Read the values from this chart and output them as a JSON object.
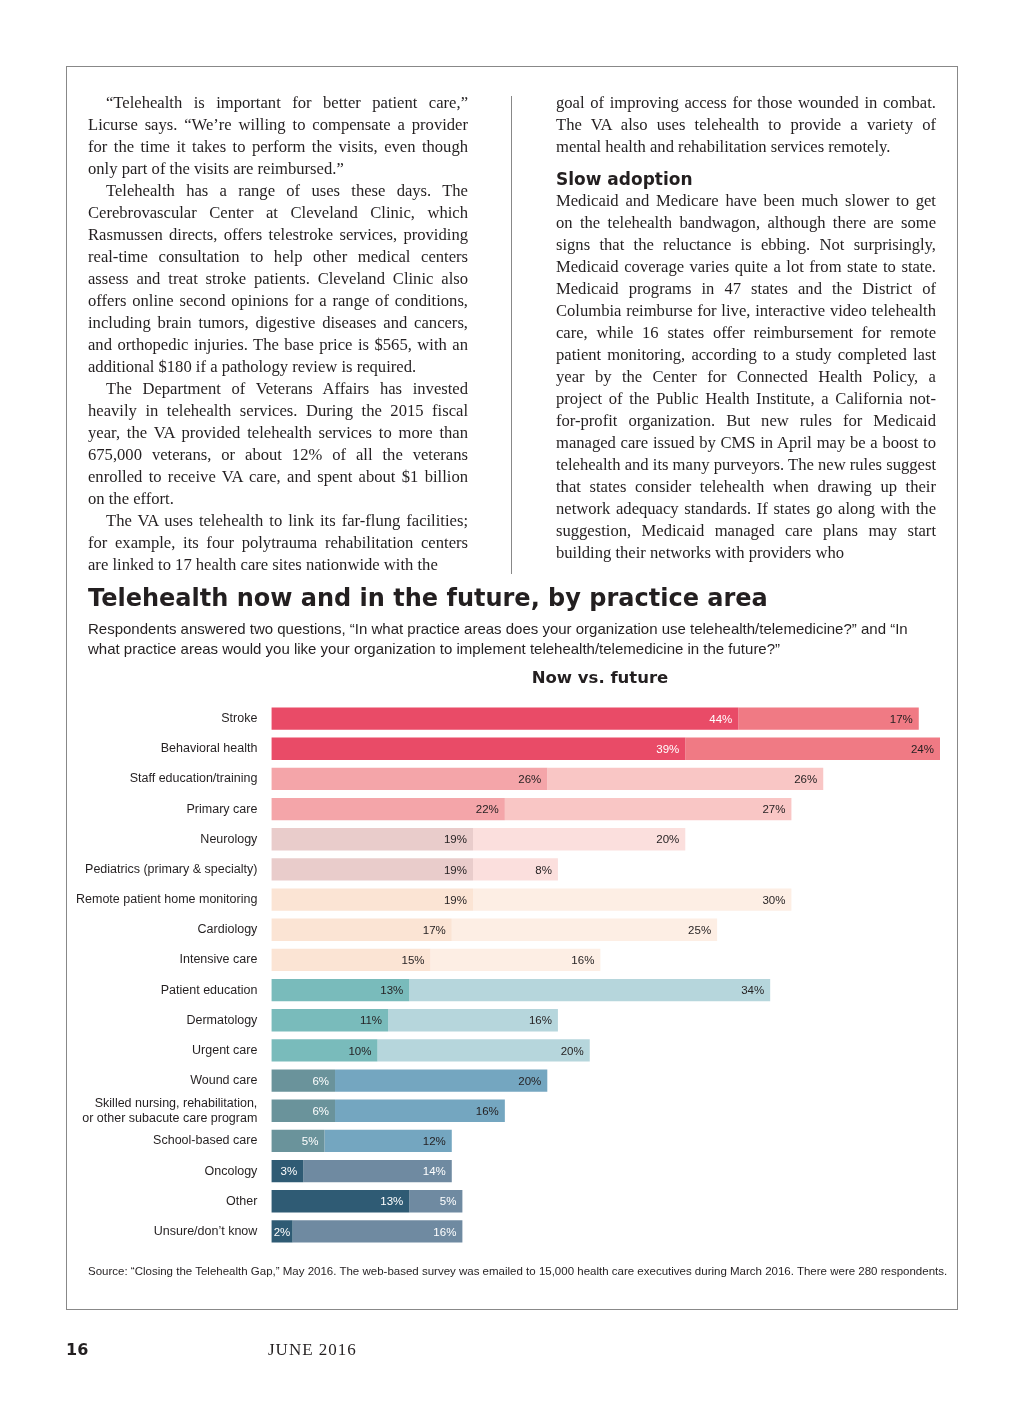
{
  "chart_data": {
    "type": "bar",
    "orientation": "horizontal",
    "stacked": true,
    "title": "Telehealth now and in the future, by practice area",
    "subtitle": "Respondents answered two questions, “In what practice areas does your organization use telehealth/telemedicine?” and “In what practice areas would you like your organization to implement telehealth/telemedicine in the future?”",
    "categories": [
      "Stroke",
      "Behavioral health",
      "Staff education/training",
      "Primary care",
      "Neurology",
      "Pediatrics (primary & specialty)",
      "Remote patient home monitoring",
      "Cardiology",
      "Intensive care",
      "Patient education",
      "Dermatology",
      "Urgent care",
      "Wound care",
      "Skilled nursing, rehabilitation, or other subacute care program",
      "School-based care",
      "Oncology",
      "Other",
      "Unsure/don’t know"
    ],
    "series": [
      {
        "values": [
          44,
          39,
          26,
          22,
          19,
          19,
          19,
          17,
          15,
          13,
          11,
          10,
          6,
          6,
          5,
          3,
          13,
          2
        ],
        "value_labels": [
          "44%",
          "39%",
          "26%",
          "22%",
          "19%",
          "19%",
          "19%",
          "17%",
          "15%",
          "13%",
          "11%",
          "10%",
          "6%",
          "6%",
          "5%",
          "3%",
          "13%",
          "2%"
        ],
        "colors": [
          "#e94b67",
          "#e94b67",
          "#f4a5a9",
          "#f4a5a9",
          "#e9cccb",
          "#e9cccb",
          "#fbe4d4",
          "#fbe4d4",
          "#fbe4d4",
          "#79bbbb",
          "#79bbbb",
          "#79bbbb",
          "#6a939b",
          "#6a939b",
          "#6a939b",
          "#2f5b74",
          "#2f5b74",
          "#2f5b74"
        ]
      },
      {
        "values": [
          17,
          24,
          26,
          27,
          20,
          8,
          30,
          25,
          16,
          34,
          16,
          20,
          20,
          16,
          12,
          14,
          5,
          16
        ],
        "value_labels": [
          "17%",
          "24%",
          "26%",
          "27%",
          "20%",
          "8%",
          "30%",
          "25%",
          "16%",
          "34%",
          "16%",
          "20%",
          "20%",
          "16%",
          "12%",
          "14%",
          "5%",
          "16%"
        ],
        "colors": [
          "#f07a84",
          "#f07a84",
          "#f9c6c5",
          "#f9c6c5",
          "#fbdfdd",
          "#fbdfdd",
          "#fdeee4",
          "#fdeee4",
          "#fdeee4",
          "#b6d6dc",
          "#b6d6dc",
          "#b6d6dc",
          "#74a6c0",
          "#74a6c0",
          "#74a6c0",
          "#6f8aa1",
          "#6f8aa1",
          "#6f8aa1"
        ]
      }
    ],
    "annotations": [
      "“Telehealth is important for better patient care,” Licurse says. “We’re willing to compensate a provider for the time it takes to perform the visits, even though only part of the visits are reimbursed.”\nTelehealth has a range of uses these days. The Cerebrovascular Center at Cleveland Clinic, which Rasmussen directs, offers telestroke services, providing real-time consultation to help other medical centers assess and treat stroke patients. Cleveland Clinic also offers online second opinions for a range of conditions, including brain tumors, digestive diseases and cancers, and orthopedic injuries. The base price is $565, with an additional $180 if a pathology review is required.\nThe Department of Veterans Affairs has invested heavily in telehealth services. During the 2015 fiscal year, the VA provided telehealth services to more than 675,000 veterans, or about 12% of all the veterans enrolled to receive VA care, and spent about $1 billion on the effort.\nThe VA uses telehealth to link its far-flung facilities; for example, its four polytrauma rehabilitation centers are linked to 17 health care sites nationwide with the",
      "goal of improving access for those wounded in combat. The VA also uses telehealth to provide a variety of mental health and rehabilitation services remotely.",
      "Slow adoption",
      "Medicaid and Medicare have been much slower to get on the telehealth bandwagon, although there are some signs that the reluctance is ebbing. Not surprisingly, Medicaid coverage varies quite a lot from state to state. Medicaid programs in 47 states and the District of Columbia reimburse for live, interactive video telehealth care, while 16 states offer reimbursement for remote patient monitoring, according to a study completed last year by the Center for Connected Health Policy, a project of the Public Health Institute, a California not-for-profit organization. But new rules for Medicaid managed care issued by CMS in April may be a boost to telehealth and its many purveyors. The new rules suggest that states consider telehealth when drawing up their network adequacy standards. If states go along with the suggestion, Medicaid managed care plans may start building their networks with providers who",
      "Now vs. future",
      "Source: “Closing the Telehealth Gap,” May 2016. The web-based survey was emailed to 15,000 health care executives during March 2016. There were 280 respondents.",
      "16",
      "JUNE 2016"
    ]
  }
}
